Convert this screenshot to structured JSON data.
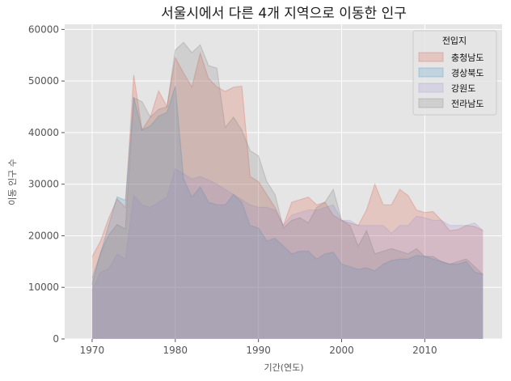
{
  "chart_data": {
    "type": "area",
    "title": "서울시에서 다른 4개 지역으로 이동한 인구",
    "xlabel": "기간(연도)",
    "ylabel": "이동 인구 수",
    "xlim": [
      1966.7,
      2019.3
    ],
    "ylim": [
      0,
      61000
    ],
    "xticks": [
      1970,
      1980,
      1990,
      2000,
      2010
    ],
    "yticks": [
      0,
      10000,
      20000,
      30000,
      40000,
      50000,
      60000
    ],
    "grid": true,
    "stacked": false,
    "legend": {
      "title": "전입지",
      "position": "top-right"
    },
    "x": [
      1970,
      1971,
      1972,
      1973,
      1974,
      1975,
      1976,
      1977,
      1978,
      1979,
      1980,
      1981,
      1982,
      1983,
      1984,
      1985,
      1986,
      1987,
      1988,
      1989,
      1990,
      1991,
      1992,
      1993,
      1994,
      1995,
      1996,
      1997,
      1998,
      1999,
      2000,
      2001,
      2002,
      2003,
      2004,
      2005,
      2006,
      2007,
      2008,
      2009,
      2010,
      2011,
      2012,
      2013,
      2014,
      2015,
      2016,
      2017
    ],
    "series": [
      {
        "name": "충청남도",
        "color": "#E24A33",
        "values": [
          15954,
          18943,
          23406,
          27139,
          25509,
          51205,
          40483,
          42992,
          48090,
          45035,
          54535,
          51549,
          48845,
          55402,
          50487,
          48855,
          47978,
          48800,
          49000,
          31500,
          30500,
          28000,
          25500,
          22000,
          26500,
          27000,
          27500,
          26000,
          26500,
          24000,
          23000,
          22500,
          22000,
          25000,
          30000,
          26000,
          26000,
          29000,
          27800,
          25000,
          24500,
          24700,
          23000,
          21000,
          21200,
          22000,
          21800,
          21000
        ]
      },
      {
        "name": "경상북도",
        "color": "#348ABD",
        "values": [
          11868,
          16459,
          22073,
          27531,
          26902,
          46920,
          40520,
          41300,
          43200,
          43900,
          49000,
          31000,
          27500,
          29500,
          26500,
          26000,
          26000,
          28000,
          26500,
          22000,
          21500,
          19000,
          19500,
          18000,
          16500,
          17000,
          17000,
          15500,
          16500,
          16800,
          14500,
          14000,
          13500,
          13800,
          13200,
          14500,
          15200,
          15500,
          15500,
          16200,
          16000,
          15500,
          15000,
          14500,
          14500,
          15000,
          13000,
          12500
        ]
      },
      {
        "name": "강원도",
        "color": "#988ED5",
        "values": [
          9352,
          12885,
          13561,
          16481,
          15479,
          27837,
          26000,
          25500,
          26500,
          27500,
          33000,
          32000,
          31000,
          31500,
          30800,
          30000,
          29000,
          28000,
          27000,
          26000,
          25500,
          25500,
          25000,
          22000,
          24000,
          24500,
          25000,
          25000,
          25500,
          26000,
          23000,
          23000,
          22000,
          22000,
          22000,
          22000,
          20500,
          22000,
          22000,
          23800,
          23500,
          23000,
          23000,
          22000,
          22000,
          22000,
          22500,
          21000
        ]
      },
      {
        "name": "전라남도",
        "color": "#777777",
        "values": [
          10513,
          16755,
          20157,
          22160,
          21314,
          46755,
          46000,
          43000,
          44500,
          45000,
          56000,
          57500,
          55500,
          57000,
          53000,
          52500,
          41000,
          43000,
          40500,
          36500,
          35500,
          30500,
          28000,
          21500,
          23000,
          23500,
          22500,
          25500,
          26500,
          29000,
          23000,
          22000,
          18000,
          21000,
          16500,
          17000,
          17500,
          17000,
          16500,
          17500,
          16000,
          16000,
          15000,
          14500,
          15000,
          15500,
          14000,
          12500
        ]
      }
    ]
  }
}
